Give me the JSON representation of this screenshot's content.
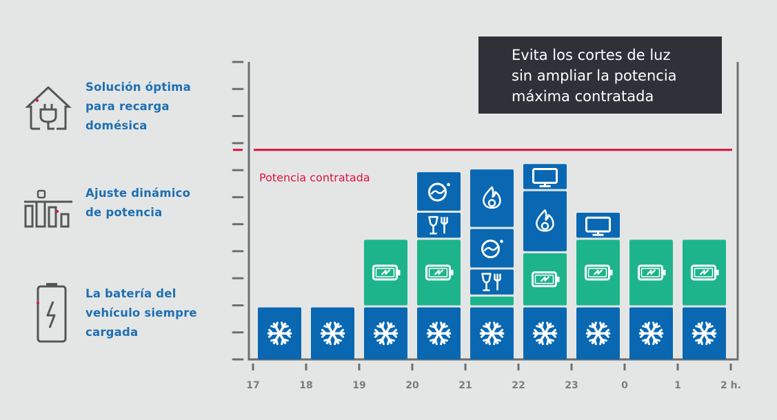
{
  "features": [
    {
      "text": "Solución óptima\npara recarga\ndomésica",
      "icon": "house-plug-icon"
    },
    {
      "text": "Ajuste dinámico\nde potencia",
      "icon": "power-bars-icon"
    },
    {
      "text": "La batería del\nvehículo siempre\ncargada",
      "icon": "battery-bolt-icon"
    }
  ],
  "callout": "Evita los cortes de luz\nsin ampliar la potencia\nmáxima contratada",
  "chart_data": {
    "type": "bar",
    "stacked": true,
    "categories": [
      "17",
      "18",
      "19",
      "20",
      "21",
      "22",
      "23",
      "0",
      "1",
      "2 h."
    ],
    "tick_labels": [
      "17",
      "18",
      "19",
      "20",
      "21",
      "22",
      "23",
      "0",
      "1",
      "2 h."
    ],
    "ylim": [
      0,
      11
    ],
    "threshold": {
      "label": "Potencia contratada",
      "value": 7.75
    },
    "stacks": [
      [
        {
          "type": "fridge",
          "value": 2
        }
      ],
      [
        {
          "type": "fridge",
          "value": 2
        }
      ],
      [
        {
          "type": "fridge",
          "value": 2
        },
        {
          "type": "ev-charging",
          "value": 2.5
        }
      ],
      [
        {
          "type": "fridge",
          "value": 2
        },
        {
          "type": "ev-charging",
          "value": 2.5
        },
        {
          "type": "kitchen",
          "value": 1
        },
        {
          "type": "washer",
          "value": 1.5
        }
      ],
      [
        {
          "type": "fridge",
          "value": 2
        },
        {
          "type": "ev-charging",
          "value": 0.4
        },
        {
          "type": "kitchen",
          "value": 1
        },
        {
          "type": "washer",
          "value": 1.5
        },
        {
          "type": "heating",
          "value": 2.2
        }
      ],
      [
        {
          "type": "fridge",
          "value": 2
        },
        {
          "type": "ev-charging",
          "value": 2
        },
        {
          "type": "heating",
          "value": 2.3
        },
        {
          "type": "tv",
          "value": 1
        }
      ],
      [
        {
          "type": "fridge",
          "value": 2
        },
        {
          "type": "ev-charging",
          "value": 2.5
        },
        {
          "type": "tv",
          "value": 1
        }
      ],
      [
        {
          "type": "fridge",
          "value": 2
        },
        {
          "type": "ev-charging",
          "value": 2.5
        }
      ],
      [
        {
          "type": "fridge",
          "value": 2
        },
        {
          "type": "ev-charging",
          "value": 2.5
        }
      ]
    ],
    "colors": {
      "blue": "#0a68b2",
      "green": "#1db48c",
      "threshold": "#e0123c",
      "axis": "#6c6e70",
      "text": "#7a7c7e"
    }
  }
}
